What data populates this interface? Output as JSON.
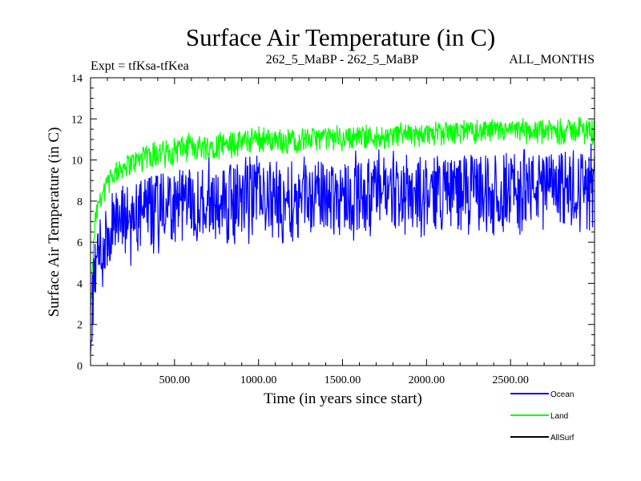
{
  "chart_data": {
    "type": "line",
    "title": "Surface Air Temperature (in C)",
    "subtitle_left": "Expt = tfKsa-tfKea",
    "subtitle_center": "262_5_MaBP - 262_5_MaBP",
    "subtitle_right": "ALL_MONTHS",
    "xlabel": "Time (in years since start)",
    "ylabel": "Surface Air Temperature (in C)",
    "xlim": [
      0,
      3000
    ],
    "ylim": [
      0,
      14
    ],
    "x_ticks": [
      500,
      1000,
      1500,
      2000,
      2500
    ],
    "x_tick_labels": [
      "500.00",
      "1000.00",
      "1500.00",
      "2000.00",
      "2500.00"
    ],
    "y_ticks": [
      0,
      2,
      4,
      6,
      8,
      10,
      12,
      14
    ],
    "y_tick_labels": [
      "0",
      "2",
      "4",
      "6",
      "8",
      "10",
      "12",
      "14"
    ],
    "x": [
      0,
      25,
      50,
      100,
      150,
      200,
      300,
      400,
      500,
      700,
      1000,
      1500,
      2000,
      2500,
      3000
    ],
    "series": [
      {
        "name": "Land",
        "color": "#00ff00",
        "min": [
          2.0,
          6.0,
          7.5,
          8.3,
          8.8,
          9.1,
          9.4,
          9.6,
          9.8,
          10.0,
          10.3,
          10.5,
          10.7,
          10.8,
          10.8
        ],
        "max": [
          3.0,
          7.5,
          8.3,
          9.3,
          9.8,
          10.2,
          10.6,
          10.9,
          11.1,
          11.3,
          11.5,
          11.6,
          11.8,
          11.9,
          12.0
        ]
      },
      {
        "name": "Ocean",
        "color": "#0000ff",
        "min": [
          0.0,
          2.5,
          3.2,
          4.0,
          4.5,
          4.9,
          5.3,
          5.6,
          5.8,
          6.0,
          6.1,
          6.3,
          6.5,
          6.6,
          6.8
        ],
        "max": [
          2.0,
          6.5,
          7.3,
          8.0,
          8.5,
          8.8,
          9.1,
          9.3,
          9.5,
          9.7,
          9.9,
          10.0,
          10.2,
          10.3,
          10.4
        ]
      },
      {
        "name": "AllSurf",
        "color": "#000000",
        "min": [],
        "max": []
      }
    ],
    "legend_position": "bottom-right"
  }
}
